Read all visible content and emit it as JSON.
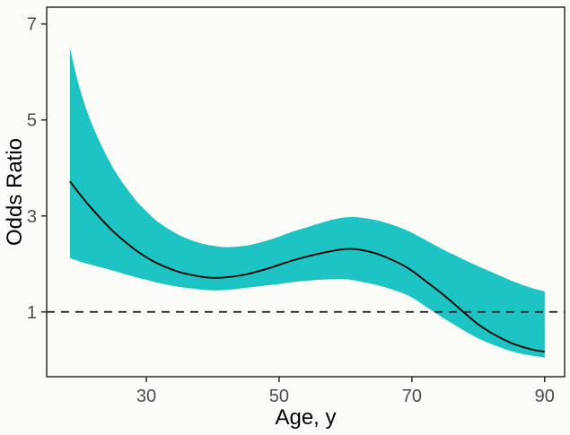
{
  "figure": {
    "type": "regression-spline-plot",
    "xlabel": "Age, y",
    "ylabel": "Odds Ratio"
  },
  "chart_data": {
    "type": "line",
    "title": "",
    "xlabel": "Age, y",
    "ylabel": "Odds Ratio",
    "x": [
      18.5,
      20,
      22,
      25,
      28,
      30,
      32,
      35,
      38,
      40,
      42,
      45,
      48,
      50,
      52,
      55,
      58,
      60,
      62,
      65,
      68,
      70,
      72,
      75,
      78,
      80,
      82,
      85,
      88,
      90
    ],
    "series": [
      {
        "name": "fitted-odds-ratio",
        "role": "line",
        "values": [
          3.72,
          3.45,
          3.12,
          2.68,
          2.33,
          2.14,
          1.99,
          1.83,
          1.74,
          1.71,
          1.72,
          1.78,
          1.89,
          1.98,
          2.07,
          2.18,
          2.27,
          2.31,
          2.3,
          2.2,
          2.02,
          1.86,
          1.65,
          1.33,
          0.97,
          0.74,
          0.56,
          0.35,
          0.22,
          0.17
        ]
      },
      {
        "name": "ci-upper",
        "role": "band-upper",
        "values": [
          6.5,
          5.65,
          4.85,
          4.0,
          3.4,
          3.1,
          2.85,
          2.6,
          2.44,
          2.38,
          2.35,
          2.38,
          2.48,
          2.57,
          2.67,
          2.8,
          2.92,
          2.97,
          2.97,
          2.9,
          2.77,
          2.65,
          2.5,
          2.28,
          2.08,
          1.95,
          1.83,
          1.65,
          1.5,
          1.43
        ]
      },
      {
        "name": "ci-lower",
        "role": "band-lower",
        "values": [
          2.12,
          2.05,
          1.97,
          1.86,
          1.74,
          1.67,
          1.6,
          1.52,
          1.47,
          1.45,
          1.46,
          1.5,
          1.55,
          1.58,
          1.62,
          1.66,
          1.68,
          1.68,
          1.64,
          1.55,
          1.42,
          1.3,
          1.12,
          0.85,
          0.6,
          0.45,
          0.33,
          0.18,
          0.09,
          0.05
        ]
      }
    ],
    "reference_line": {
      "y": 1,
      "style": "dashed"
    },
    "x_ticks": [
      30,
      50,
      70,
      90
    ],
    "y_ticks": [
      1,
      3,
      5,
      7
    ],
    "xlim": [
      15,
      93
    ],
    "ylim": [
      -0.35,
      7.35
    ],
    "grid": "off",
    "legend": "none",
    "colors": {
      "band": "#1EC4C4",
      "line": "#000000",
      "reference": "#1A1A1A",
      "panel_border": "#3A3A3A",
      "tick_mark": "#333333",
      "tick_label": "#4D4D4D",
      "axis_title": "#000000",
      "background": "#FBFBF8"
    }
  }
}
